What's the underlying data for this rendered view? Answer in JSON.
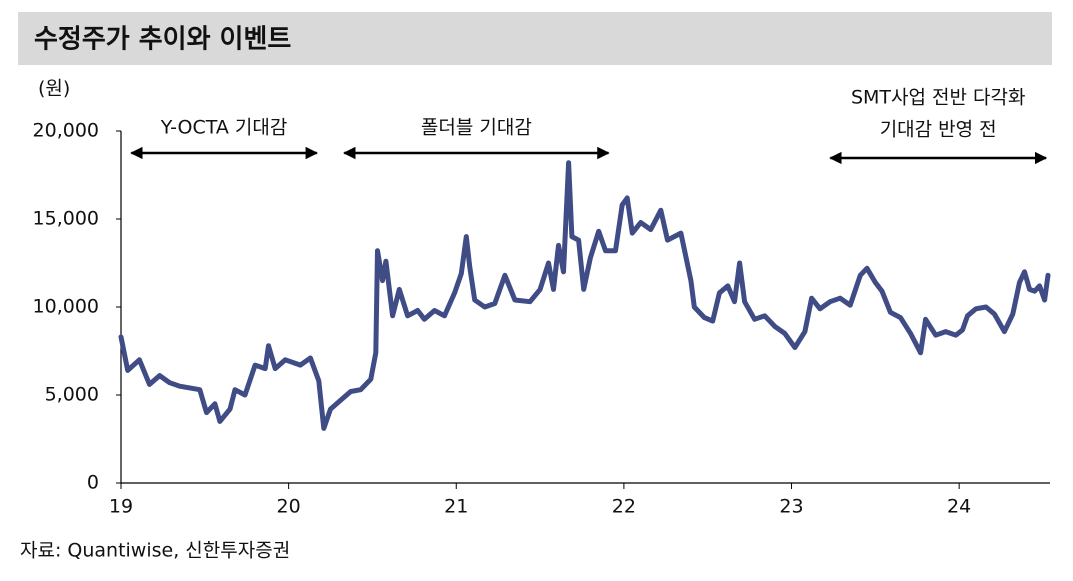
{
  "chart_data": {
    "type": "line",
    "title": "수정주가 추이와 이벤트",
    "y_label": "(원)",
    "source": "자료: Quantiwise, 신한투자증권",
    "color": "#3f4c85",
    "x": [
      19.0,
      19.04,
      19.11,
      19.17,
      19.23,
      19.29,
      19.35,
      19.47,
      19.51,
      19.56,
      19.59,
      19.65,
      19.68,
      19.74,
      19.8,
      19.86,
      19.88,
      19.92,
      19.98,
      20.07,
      20.13,
      20.18,
      20.21,
      20.25,
      20.31,
      20.37,
      20.43,
      20.49,
      20.52,
      20.53,
      20.56,
      20.58,
      20.62,
      20.66,
      20.71,
      20.77,
      20.81,
      20.87,
      20.93,
      20.99,
      21.03,
      21.06,
      21.08,
      21.11,
      21.17,
      21.23,
      21.29,
      21.35,
      21.44,
      21.5,
      21.55,
      21.58,
      21.61,
      21.64,
      21.67,
      21.69,
      21.73,
      21.76,
      21.8,
      21.85,
      21.89,
      21.95,
      21.99,
      22.02,
      22.05,
      22.1,
      22.16,
      22.22,
      22.26,
      22.34,
      22.4,
      22.42,
      22.48,
      22.53,
      22.57,
      22.62,
      22.66,
      22.69,
      22.72,
      22.78,
      22.84,
      22.9,
      22.96,
      23.02,
      23.08,
      23.12,
      23.17,
      23.23,
      23.29,
      23.35,
      23.41,
      23.45,
      23.5,
      23.54,
      23.59,
      23.65,
      23.71,
      23.77,
      23.8,
      23.86,
      23.92,
      23.98,
      24.02,
      24.05,
      24.1,
      24.16,
      24.21,
      24.27,
      24.32,
      24.36,
      24.39,
      24.42,
      24.45,
      24.48,
      24.51,
      24.53
    ],
    "values": [
      8300,
      6400,
      7000,
      5600,
      6100,
      5700,
      5500,
      5300,
      4000,
      4500,
      3500,
      4200,
      5300,
      5000,
      6700,
      6500,
      7800,
      6500,
      7000,
      6700,
      7100,
      5800,
      3100,
      4200,
      4700,
      5200,
      5300,
      5900,
      7400,
      13200,
      11500,
      12600,
      9500,
      11000,
      9500,
      9800,
      9300,
      9800,
      9500,
      10800,
      11900,
      14000,
      12300,
      10400,
      10000,
      10200,
      11800,
      10400,
      10300,
      11000,
      12500,
      11000,
      13500,
      12000,
      18200,
      14000,
      13800,
      11000,
      12800,
      14300,
      13200,
      13200,
      15800,
      16200,
      14200,
      14800,
      14400,
      15500,
      13800,
      14200,
      11500,
      10000,
      9400,
      9200,
      10800,
      11200,
      10300,
      12500,
      10300,
      9300,
      9500,
      8900,
      8500,
      7700,
      8600,
      10500,
      9900,
      10300,
      10500,
      10100,
      11800,
      12200,
      11400,
      10900,
      9700,
      9400,
      8500,
      7400,
      9300,
      8400,
      8600,
      8400,
      8700,
      9500,
      9900,
      10000,
      9600,
      8600,
      9600,
      11400,
      12000,
      11000,
      10900,
      11200,
      10400,
      11800
    ],
    "xlim": [
      19,
      24.53
    ],
    "xticks": [
      19,
      20,
      21,
      22,
      23,
      24
    ],
    "ylim": [
      0,
      20000
    ],
    "yticks": [
      0,
      {
        "value": 5000,
        "label": "5,000"
      },
      {
        "value": 10000,
        "label": "10,000"
      },
      {
        "value": 15000,
        "label": "15,000"
      },
      {
        "value": 20000,
        "label": "20,000"
      }
    ],
    "annotations": [
      {
        "lines": [
          "Y-OCTA 기대감"
        ],
        "xrange": [
          19.05,
          20.18
        ]
      },
      {
        "lines": [
          "폴더블 기대감"
        ],
        "xrange": [
          20.32,
          21.92
        ]
      },
      {
        "lines": [
          "SMT사업 전반 다각화",
          "기대감 반영 전"
        ],
        "xrange": [
          23.22,
          24.53
        ]
      }
    ]
  }
}
